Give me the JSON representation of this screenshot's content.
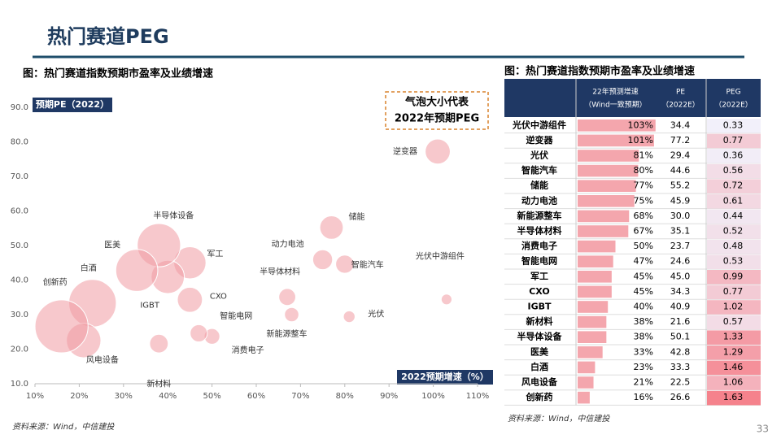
{
  "header": {
    "title": "热门赛道PEG"
  },
  "page_number": "33",
  "chart_data": {
    "type": "bubble",
    "title": "图：热门赛道指数预期市盈率及业绩增速",
    "y_label": "预期PE（2022）",
    "x_label": "2022预期增速（%）",
    "annotation": [
      "气泡大小代表",
      "2022年预期PEG"
    ],
    "categories": [
      "光伏中游组件",
      "逆变器",
      "光伏",
      "智能汽车",
      "储能",
      "动力电池",
      "新能源整车",
      "半导体材料",
      "消费电子",
      "智能电网",
      "军工",
      "CXO",
      "IGBT",
      "新材料",
      "半导体设备",
      "医美",
      "白酒",
      "风电设备",
      "创新药"
    ],
    "x": [
      103,
      101,
      81,
      80,
      77,
      75,
      68,
      67,
      50,
      47,
      45,
      45,
      40,
      38,
      38,
      33,
      23,
      21,
      16
    ],
    "values": [
      34.4,
      77.2,
      29.4,
      44.6,
      55.2,
      45.9,
      30.0,
      35.1,
      23.7,
      24.6,
      45.0,
      34.3,
      40.9,
      21.6,
      50.1,
      42.8,
      33.3,
      22.5,
      26.6
    ],
    "sizes": [
      0.33,
      0.77,
      0.36,
      0.56,
      0.72,
      0.61,
      0.44,
      0.52,
      0.48,
      0.53,
      0.99,
      0.77,
      1.02,
      0.57,
      1.33,
      1.29,
      1.46,
      1.06,
      1.63
    ],
    "color": "#f19aa2",
    "xlim": [
      10,
      110
    ],
    "ylim": [
      10,
      90
    ],
    "xticks": [
      {
        "value": 10,
        "label": "10%"
      },
      {
        "value": 20,
        "label": "20%"
      },
      {
        "value": 30,
        "label": "30%"
      },
      {
        "value": 40,
        "label": "40%"
      },
      {
        "value": 50,
        "label": "50%"
      },
      {
        "value": 60,
        "label": "60%"
      },
      {
        "value": 70,
        "label": "70%"
      },
      {
        "value": 80,
        "label": "80%"
      },
      {
        "value": 90,
        "label": "90%"
      },
      {
        "value": 100,
        "label": "100%"
      },
      {
        "value": 110,
        "label": "110%"
      }
    ],
    "yticks": [
      {
        "value": 10,
        "label": "10.0"
      },
      {
        "value": 20,
        "label": "20.0"
      },
      {
        "value": 30,
        "label": "30.0"
      },
      {
        "value": 40,
        "label": "40.0"
      },
      {
        "value": 50,
        "label": "50.0"
      },
      {
        "value": 60,
        "label": "60.0"
      },
      {
        "value": 70,
        "label": "70.0"
      },
      {
        "value": 80,
        "label": "80.0"
      },
      {
        "value": 90,
        "label": "90.0"
      }
    ],
    "source": "资料来源：Wind，中信建投"
  },
  "table": {
    "title": "图：热门赛道指数预期市盈率及业绩增速",
    "headers": [
      [
        "22年预测增速",
        "（Wind一致预期）"
      ],
      [
        "PE",
        "（2022E）"
      ],
      [
        "PEG",
        "（2022E）"
      ]
    ],
    "rows": [
      [
        "光伏中游组件",
        "103%",
        "34.4",
        "0.33"
      ],
      [
        "逆变器",
        "101%",
        "77.2",
        "0.77"
      ],
      [
        "光伏",
        "81%",
        "29.4",
        "0.36"
      ],
      [
        "智能汽车",
        "80%",
        "44.6",
        "0.56"
      ],
      [
        "储能",
        "77%",
        "55.2",
        "0.72"
      ],
      [
        "动力电池",
        "75%",
        "45.9",
        "0.61"
      ],
      [
        "新能源整车",
        "68%",
        "30.0",
        "0.44"
      ],
      [
        "半导体材料",
        "67%",
        "35.1",
        "0.52"
      ],
      [
        "消费电子",
        "50%",
        "23.7",
        "0.48"
      ],
      [
        "智能电网",
        "47%",
        "24.6",
        "0.53"
      ],
      [
        "军工",
        "45%",
        "45.0",
        "0.99"
      ],
      [
        "CXO",
        "45%",
        "34.3",
        "0.77"
      ],
      [
        "IGBT",
        "40%",
        "40.9",
        "1.02"
      ],
      [
        "新材料",
        "38%",
        "21.6",
        "0.57"
      ],
      [
        "半导体设备",
        "38%",
        "50.1",
        "1.33"
      ],
      [
        "医美",
        "33%",
        "42.8",
        "1.29"
      ],
      [
        "白酒",
        "23%",
        "33.3",
        "1.46"
      ],
      [
        "风电设备",
        "21%",
        "22.5",
        "1.06"
      ],
      [
        "创新药",
        "16%",
        "26.6",
        "1.63"
      ]
    ],
    "source": "资料来源：Wind，中信建投"
  }
}
